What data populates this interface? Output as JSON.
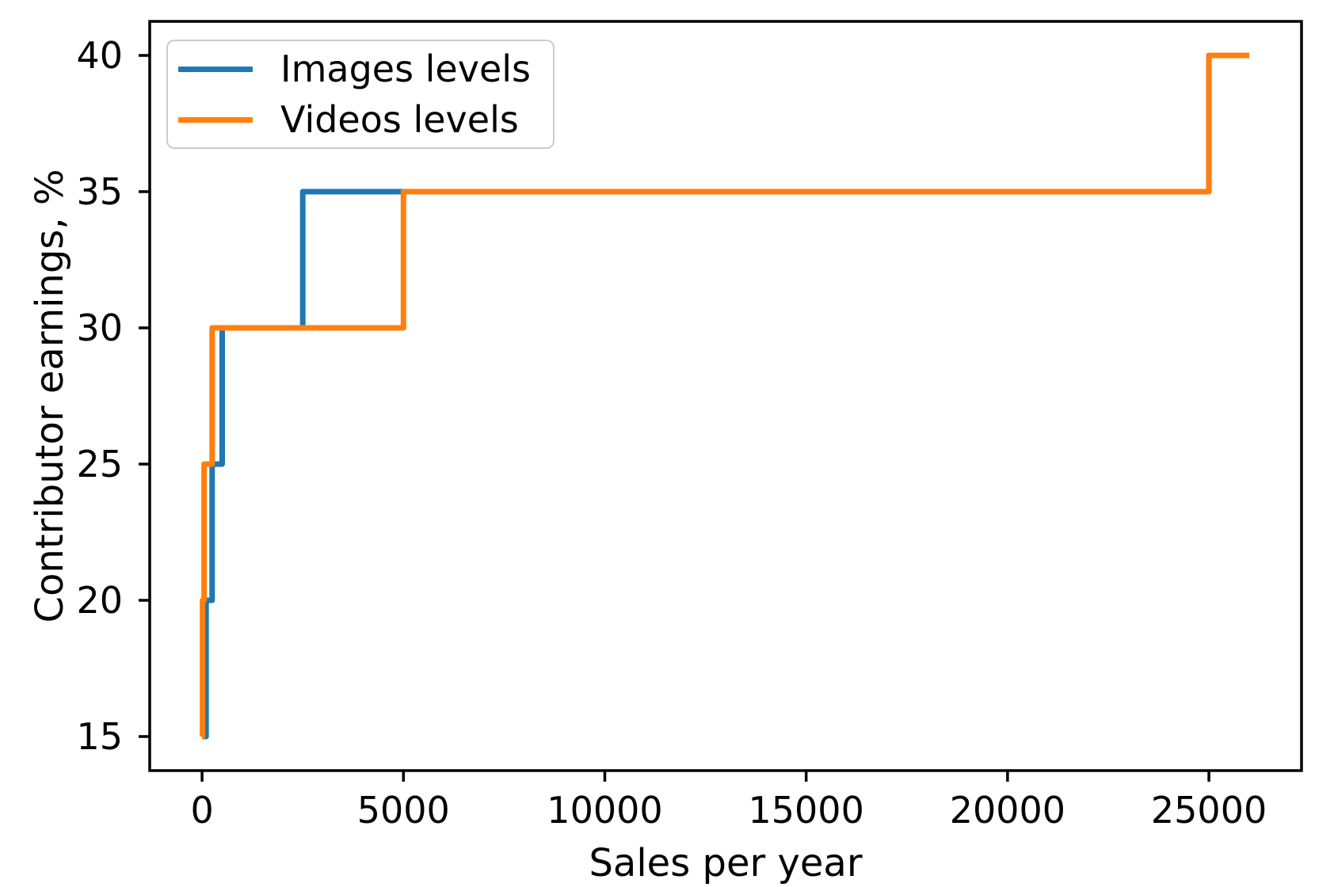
{
  "figure": {
    "background": "#ffffff",
    "axis_color": "#000000",
    "text_color": "#000000",
    "legend_border_color": "#cccccc"
  },
  "chart_data": {
    "type": "line",
    "subtype": "step-post",
    "title": "",
    "xlabel": "Sales per year",
    "ylabel": "Contributor earnings, %",
    "xlim": [
      -1300,
      27300
    ],
    "ylim": [
      13.75,
      41.25
    ],
    "grid": false,
    "legend_position": "upper-left",
    "xticks": {
      "values": [
        0,
        5000,
        10000,
        15000,
        20000,
        25000
      ],
      "labels": [
        "0",
        "5000",
        "10000",
        "15000",
        "20000",
        "25000"
      ]
    },
    "yticks": {
      "values": [
        15,
        20,
        25,
        30,
        35,
        40
      ],
      "labels": [
        "15",
        "20",
        "25",
        "30",
        "35",
        "40"
      ]
    },
    "series": [
      {
        "name": "Images levels",
        "color": "#1f77b4",
        "x": [
          0,
          100,
          250,
          500,
          2500,
          25000,
          26000
        ],
        "y": [
          15,
          20,
          25,
          30,
          35,
          40,
          40
        ]
      },
      {
        "name": "Videos levels",
        "color": "#ff7f0e",
        "x": [
          0,
          10,
          50,
          250,
          5000,
          25000,
          26000
        ],
        "y": [
          15,
          20,
          25,
          30,
          35,
          40,
          40
        ]
      }
    ]
  }
}
